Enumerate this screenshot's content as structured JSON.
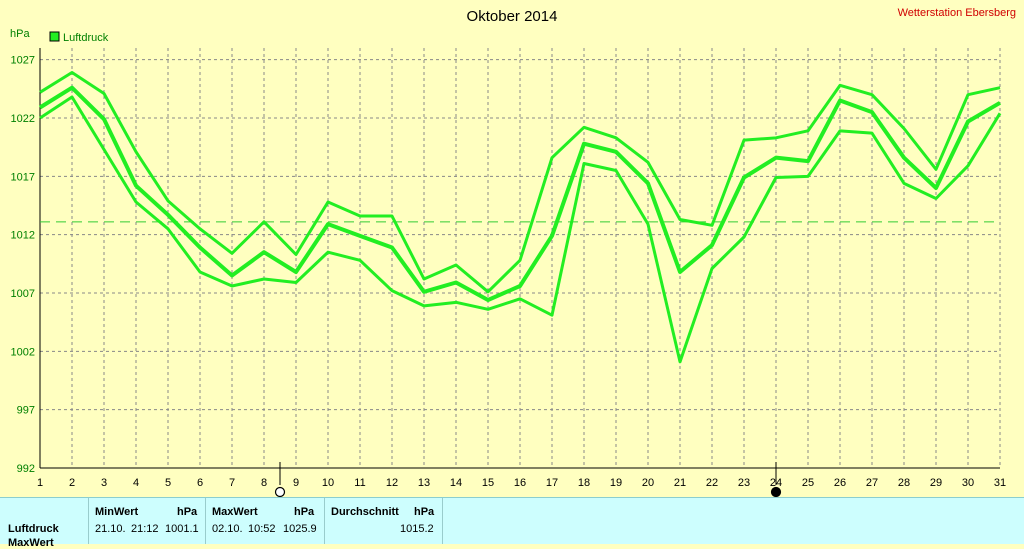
{
  "chart_data": {
    "type": "line",
    "title": "Oktober 2014",
    "station": "Wetterstation Ebersberg",
    "ylabel": "hPa",
    "legend": [
      "Luftdruck"
    ],
    "legend_position": "top-left",
    "grid": true,
    "xlim": [
      1,
      31
    ],
    "ylim": [
      992,
      1028
    ],
    "x_ticks": [
      1,
      2,
      3,
      4,
      5,
      6,
      7,
      8,
      9,
      10,
      11,
      12,
      13,
      14,
      15,
      16,
      17,
      18,
      19,
      20,
      21,
      22,
      23,
      24,
      25,
      26,
      27,
      28,
      29,
      30,
      31
    ],
    "y_ticks": [
      992,
      997,
      1002,
      1007,
      1012,
      1017,
      1022,
      1027
    ],
    "x": [
      1,
      2,
      3,
      4,
      5,
      6,
      7,
      8,
      9,
      10,
      11,
      12,
      13,
      14,
      15,
      16,
      17,
      18,
      19,
      20,
      21,
      22,
      23,
      24,
      25,
      26,
      27,
      28,
      29,
      30,
      31
    ],
    "series": [
      {
        "values": [
          1024.2,
          1025.9,
          1024.1,
          1019.1,
          1014.9,
          1012.5,
          1010.4,
          1013.1,
          1010.3,
          1014.8,
          1013.6,
          1013.6,
          1008.2,
          1009.4,
          1007.1,
          1009.8,
          1018.6,
          1021.2,
          1020.3,
          1018.2,
          1013.3,
          1012.8,
          1020.1,
          1020.3,
          1020.9,
          1024.8,
          1024.0,
          1021.1,
          1017.6,
          1024.0,
          1024.6
        ]
      },
      {
        "values": [
          1022.9,
          1024.6,
          1021.9,
          1016.2,
          1013.7,
          1010.9,
          1008.5,
          1010.5,
          1008.8,
          1012.9,
          1011.9,
          1010.9,
          1007.1,
          1007.9,
          1006.4,
          1007.6,
          1011.9,
          1019.8,
          1019.1,
          1016.4,
          1008.8,
          1011.1,
          1016.9,
          1018.6,
          1018.3,
          1023.5,
          1022.5,
          1018.6,
          1016.0,
          1021.7,
          1023.3
        ]
      },
      {
        "values": [
          1022.0,
          1023.8,
          1019.3,
          1014.8,
          1012.5,
          1008.8,
          1007.6,
          1008.2,
          1007.9,
          1010.5,
          1009.8,
          1007.2,
          1005.9,
          1006.2,
          1005.6,
          1006.5,
          1005.1,
          1018.1,
          1017.5,
          1012.9,
          1001.1,
          1009.1,
          1011.8,
          1016.9,
          1017.0,
          1020.9,
          1020.7,
          1016.4,
          1015.1,
          1017.9,
          1022.4
        ]
      }
    ],
    "reference_line": 1013.1,
    "markers": [
      {
        "x": 8.5,
        "symbol": "open-circle"
      },
      {
        "x": 24,
        "symbol": "filled-circle"
      }
    ],
    "colors": {
      "line": "#22ee22",
      "reference": "#33cc33",
      "grid": "#888888",
      "background": "#ffffc0"
    }
  },
  "stats": {
    "row_label": "Luftdruck",
    "row_label2": "MaxWert",
    "min": {
      "label": "MinWert",
      "unit": "hPa",
      "date": "21.10.",
      "time": "21:12",
      "value": "1001.1"
    },
    "max": {
      "label": "MaxWert",
      "unit": "hPa",
      "date": "02.10.",
      "time": "10:52",
      "value": "1025.9"
    },
    "avg": {
      "label": "Durchschnitt",
      "unit": "hPa",
      "value": "1015.2"
    }
  }
}
